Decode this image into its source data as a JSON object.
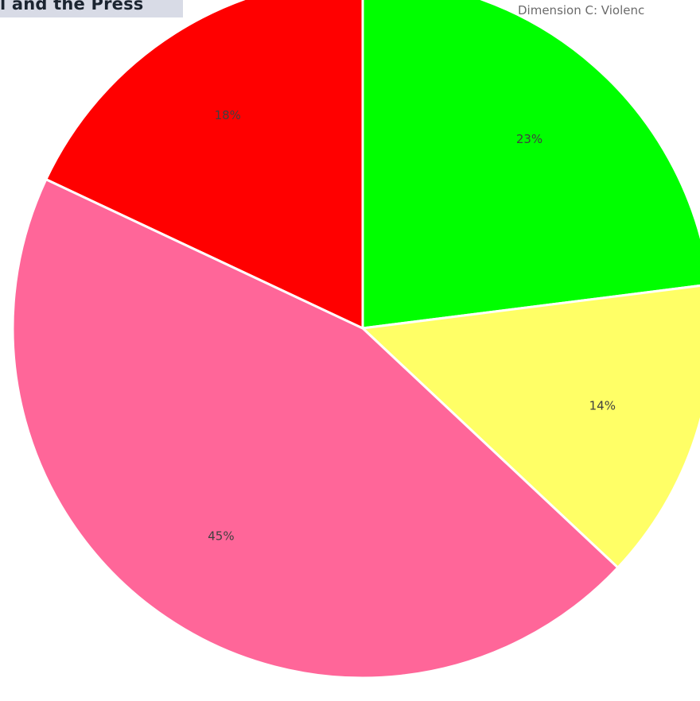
{
  "header": {
    "banner_text": "l and the Press"
  },
  "chart_data": {
    "type": "pie",
    "title": "Dimension C: Violenc",
    "slices": [
      {
        "label": "23%",
        "value": 23,
        "color": "#00ff00"
      },
      {
        "label": "14%",
        "value": 14,
        "color": "#ffff66"
      },
      {
        "label": "45%",
        "value": 45,
        "color": "#ff6699"
      },
      {
        "label": "18%",
        "value": 18,
        "color": "#ff0000"
      }
    ],
    "start_angle_deg": 0,
    "direction": "clockwise"
  }
}
